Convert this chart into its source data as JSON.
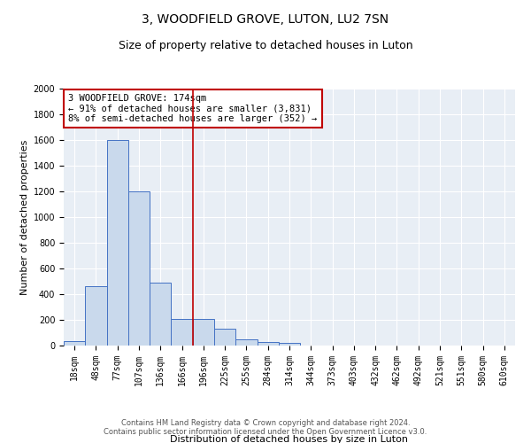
{
  "title": "3, WOODFIELD GROVE, LUTON, LU2 7SN",
  "subtitle": "Size of property relative to detached houses in Luton",
  "xlabel": "Distribution of detached houses by size in Luton",
  "ylabel": "Number of detached properties",
  "footnote": "Contains HM Land Registry data © Crown copyright and database right 2024.\nContains public sector information licensed under the Open Government Licence v3.0.",
  "bin_labels": [
    "18sqm",
    "48sqm",
    "77sqm",
    "107sqm",
    "136sqm",
    "166sqm",
    "196sqm",
    "225sqm",
    "255sqm",
    "284sqm",
    "314sqm",
    "344sqm",
    "373sqm",
    "403sqm",
    "432sqm",
    "462sqm",
    "492sqm",
    "521sqm",
    "551sqm",
    "580sqm",
    "610sqm"
  ],
  "bar_heights": [
    35,
    465,
    1600,
    1200,
    490,
    210,
    205,
    130,
    45,
    30,
    20,
    0,
    0,
    0,
    0,
    0,
    0,
    0,
    0,
    0,
    0
  ],
  "bar_color": "#c9d9ec",
  "bar_edge_color": "#4472c4",
  "vline_x": 5.5,
  "vline_color": "#c00000",
  "ylim": [
    0,
    2000
  ],
  "yticks": [
    0,
    200,
    400,
    600,
    800,
    1000,
    1200,
    1400,
    1600,
    1800,
    2000
  ],
  "annotation_box_text": "3 WOODFIELD GROVE: 174sqm\n← 91% of detached houses are smaller (3,831)\n8% of semi-detached houses are larger (352) →",
  "annotation_box_color": "#c00000",
  "bg_color": "#e8eef5",
  "title_fontsize": 10,
  "subtitle_fontsize": 9,
  "axis_label_fontsize": 8,
  "tick_fontsize": 7,
  "annotation_fontsize": 7.5,
  "footnote_fontsize": 6,
  "footnote_color": "#555555"
}
